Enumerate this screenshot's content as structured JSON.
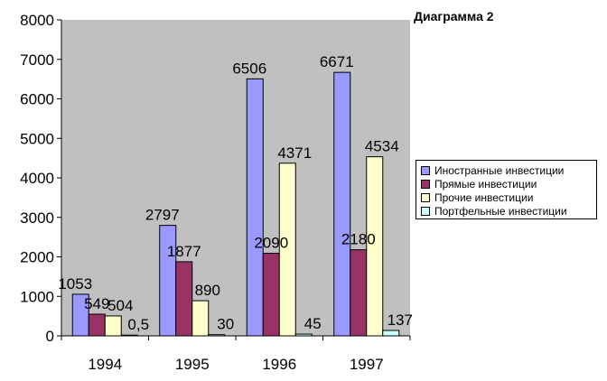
{
  "chart_data": {
    "type": "bar",
    "title": "Диаграмма 2",
    "categories": [
      "1994",
      "1995",
      "1996",
      "1997"
    ],
    "series": [
      {
        "name": "Иностранные инвестиции",
        "color": "#9999ff",
        "values": [
          1053,
          2797,
          6506,
          6671
        ],
        "labels": [
          "1053",
          "2797",
          "6506",
          "6671"
        ]
      },
      {
        "name": "Прямые инвестиции",
        "color": "#993366",
        "values": [
          549,
          1877,
          2090,
          2180
        ],
        "labels": [
          "549",
          "1877",
          "2090",
          "2180"
        ]
      },
      {
        "name": "Прочие инвестиции",
        "color": "#ffffcc",
        "values": [
          504,
          890,
          4371,
          4534
        ],
        "labels": [
          "504",
          "890",
          "4371",
          "4534"
        ]
      },
      {
        "name": "Портфельные инвестиции",
        "color": "#ccffff",
        "values": [
          0.5,
          30,
          45,
          137
        ],
        "labels": [
          "0,5",
          "30",
          "45",
          "137"
        ]
      }
    ],
    "yticks": [
      "0",
      "1000",
      "2000",
      "3000",
      "4000",
      "5000",
      "6000",
      "7000",
      "8000"
    ],
    "ylim": [
      0,
      8000
    ],
    "grid": false,
    "plot_background": "#c0c0c0",
    "legend_position": "right"
  }
}
